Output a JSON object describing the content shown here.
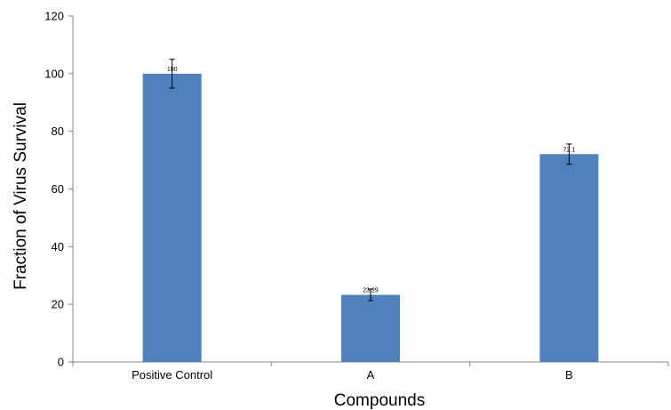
{
  "chart_data": {
    "type": "bar",
    "title": "",
    "xlabel": "Compounds",
    "ylabel": "Fraction of  Virus Survival",
    "categories": [
      "Positive Control",
      "A",
      "B"
    ],
    "values": [
      100,
      23.29,
      72.1
    ],
    "data_labels": [
      "100",
      "23.29",
      "72.1"
    ],
    "error": [
      5,
      2,
      3.5
    ],
    "ylim": [
      0,
      120
    ],
    "yticks": [
      0,
      20,
      40,
      60,
      80,
      100,
      120
    ],
    "ytick_labels": [
      "0",
      "20",
      "40",
      "60",
      "80",
      "100",
      "120"
    ],
    "grid": false,
    "legend": "none",
    "bar_color": "#4f81bd"
  }
}
